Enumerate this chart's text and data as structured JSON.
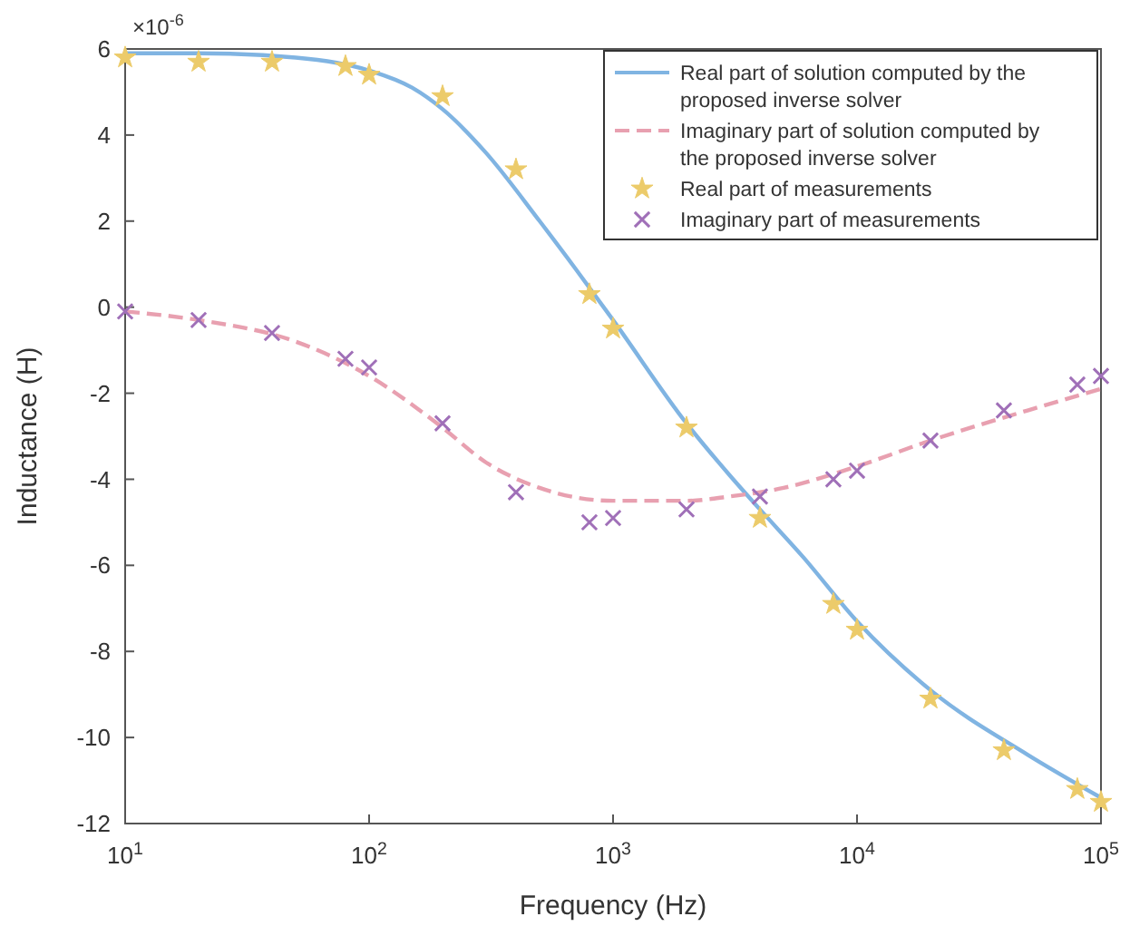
{
  "chart_data": {
    "type": "line",
    "xlabel": "Frequency (Hz)",
    "ylabel": "Inductance (H)",
    "annotations": [
      "×10$^{-6}$"
    ],
    "log": "x",
    "grid": false,
    "legend": "top right",
    "xlim": [
      10,
      100000
    ],
    "xticks": [
      {
        "value": 10,
        "label": "10$^{1}$"
      },
      {
        "value": 100,
        "label": "10$^{2}$"
      },
      {
        "value": 1000,
        "label": "10$^{3}$"
      },
      {
        "value": 10000,
        "label": "10$^{4}$"
      },
      {
        "value": 100000,
        "label": "10$^{5}$"
      }
    ],
    "ylim": [
      -12,
      6
    ],
    "yticks": [
      -12,
      -10,
      -8,
      -6,
      -4,
      -2,
      0,
      2,
      4,
      6
    ],
    "series": [
      {
        "name": "Real part of solution computed by the proposed inverse solver",
        "color": "#80b4e2",
        "line_style": "solid",
        "marker": "none",
        "x": [
          10,
          20,
          50,
          100,
          150,
          200,
          300,
          500,
          700,
          1000,
          2000,
          3000,
          4000,
          6000,
          10000,
          20000,
          50000,
          100000
        ],
        "values": [
          5.9,
          5.9,
          5.8,
          5.5,
          5.1,
          4.6,
          3.6,
          2.0,
          0.9,
          -0.3,
          -2.7,
          -3.9,
          -4.7,
          -5.8,
          -7.3,
          -8.9,
          -10.4,
          -11.4
        ]
      },
      {
        "name": "Imaginary part of solution computed by the proposed inverse solver",
        "color": "#e8a0b0",
        "line_style": "dashed",
        "marker": "none",
        "x": [
          10,
          20,
          50,
          100,
          200,
          300,
          500,
          1000,
          2000,
          3000,
          5000,
          10000,
          20000,
          50000,
          100000
        ],
        "values": [
          -0.1,
          -0.3,
          -0.8,
          -1.6,
          -2.8,
          -3.6,
          -4.2,
          -4.5,
          -4.5,
          -4.4,
          -4.2,
          -3.7,
          -3.1,
          -2.4,
          -1.9
        ]
      },
      {
        "name": "Real part of measurements",
        "type": "scatter",
        "color": "#eccb6a",
        "marker": "star",
        "x": [
          10,
          20,
          40,
          80,
          100,
          200,
          400,
          800,
          1000,
          2000,
          4000,
          8000,
          10000,
          20000,
          40000,
          80000,
          100000
        ],
        "values": [
          5.8,
          5.7,
          5.7,
          5.6,
          5.4,
          4.9,
          3.2,
          0.3,
          -0.5,
          -2.8,
          -4.9,
          -6.9,
          -7.5,
          -9.1,
          -10.3,
          -11.2,
          -11.5
        ]
      },
      {
        "name": "Imaginary part of measurements",
        "type": "scatter",
        "color": "#a070b8",
        "marker": "cross",
        "x": [
          10,
          20,
          40,
          80,
          100,
          200,
          400,
          800,
          1000,
          2000,
          4000,
          8000,
          10000,
          20000,
          40000,
          80000,
          100000
        ],
        "values": [
          -0.1,
          -0.3,
          -0.6,
          -1.2,
          -1.4,
          -2.7,
          -4.3,
          -5.0,
          -4.9,
          -4.7,
          -4.4,
          -4.0,
          -3.8,
          -3.1,
          -2.4,
          -1.8,
          -1.6
        ]
      }
    ]
  }
}
